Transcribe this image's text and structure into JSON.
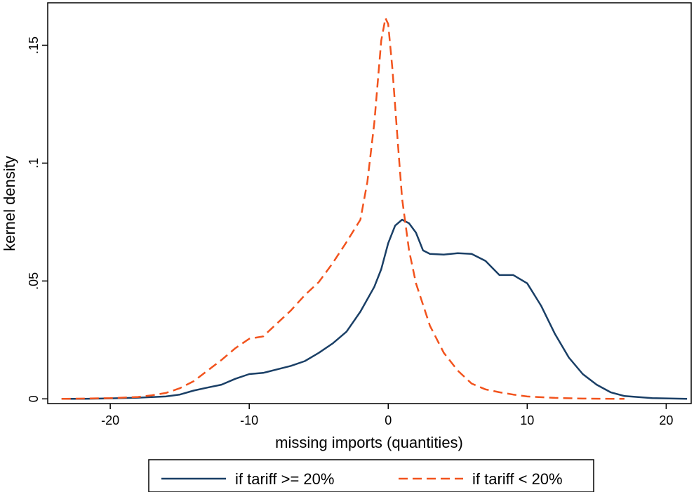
{
  "chart_data": {
    "type": "line",
    "title": "",
    "xlabel": "missing imports (quantities)",
    "ylabel": "kernel density",
    "xlim": [
      -24.5,
      21.8
    ],
    "ylim": [
      -0.002,
      0.168
    ],
    "x_ticks": [
      -20,
      -10,
      0,
      10,
      20
    ],
    "x_tick_labels": [
      "-20",
      "-10",
      "0",
      "10",
      "20"
    ],
    "y_ticks": [
      0,
      0.05,
      0.1,
      0.15
    ],
    "y_tick_labels": [
      "0",
      ".05",
      ".1",
      ".15"
    ],
    "grid": false,
    "legend_position": "bottom",
    "series": [
      {
        "name": "if tariff >= 20%",
        "color": "#1a3f66",
        "style": "solid",
        "points": [
          [
            -23.5,
            0
          ],
          [
            -22,
            0
          ],
          [
            -20,
            0.0002
          ],
          [
            -18,
            0.0005
          ],
          [
            -16,
            0.001
          ],
          [
            -15,
            0.0018
          ],
          [
            -14,
            0.0035
          ],
          [
            -13,
            0.0048
          ],
          [
            -12,
            0.006
          ],
          [
            -11,
            0.0085
          ],
          [
            -10,
            0.0105
          ],
          [
            -9,
            0.011
          ],
          [
            -8,
            0.0125
          ],
          [
            -7,
            0.014
          ],
          [
            -6,
            0.016
          ],
          [
            -5,
            0.0195
          ],
          [
            -4,
            0.0235
          ],
          [
            -3,
            0.0285
          ],
          [
            -2,
            0.037
          ],
          [
            -1,
            0.0475
          ],
          [
            -0.5,
            0.055
          ],
          [
            0,
            0.066
          ],
          [
            0.5,
            0.0735
          ],
          [
            1,
            0.076
          ],
          [
            1.5,
            0.0745
          ],
          [
            2,
            0.0705
          ],
          [
            2.5,
            0.063
          ],
          [
            3,
            0.0615
          ],
          [
            4,
            0.0612
          ],
          [
            5,
            0.0618
          ],
          [
            6,
            0.0615
          ],
          [
            7,
            0.0585
          ],
          [
            8,
            0.0525
          ],
          [
            9,
            0.0525
          ],
          [
            10,
            0.049
          ],
          [
            11,
            0.0395
          ],
          [
            12,
            0.0275
          ],
          [
            13,
            0.0175
          ],
          [
            14,
            0.0105
          ],
          [
            15,
            0.006
          ],
          [
            16,
            0.0028
          ],
          [
            17,
            0.0012
          ],
          [
            19,
            0.0003
          ],
          [
            21.5,
            0
          ]
        ]
      },
      {
        "name": "if tariff < 20%",
        "color": "#f2531d",
        "style": "dashed",
        "points": [
          [
            -23.5,
            0
          ],
          [
            -20,
            0.0003
          ],
          [
            -18,
            0.0008
          ],
          [
            -17,
            0.0015
          ],
          [
            -16,
            0.0025
          ],
          [
            -15,
            0.0045
          ],
          [
            -14,
            0.0075
          ],
          [
            -13,
            0.012
          ],
          [
            -12,
            0.0165
          ],
          [
            -11,
            0.0215
          ],
          [
            -10,
            0.0255
          ],
          [
            -9.5,
            0.026
          ],
          [
            -9,
            0.0265
          ],
          [
            -8,
            0.032
          ],
          [
            -7,
            0.0375
          ],
          [
            -6,
            0.044
          ],
          [
            -5,
            0.0495
          ],
          [
            -4,
            0.0575
          ],
          [
            -3,
            0.0665
          ],
          [
            -2,
            0.076
          ],
          [
            -1.5,
            0.092
          ],
          [
            -1,
            0.117
          ],
          [
            -0.5,
            0.152
          ],
          [
            -0.2,
            0.1615
          ],
          [
            0,
            0.159
          ],
          [
            0.3,
            0.14
          ],
          [
            0.7,
            0.108
          ],
          [
            1,
            0.085
          ],
          [
            1.5,
            0.063
          ],
          [
            2,
            0.049
          ],
          [
            3,
            0.031
          ],
          [
            4,
            0.0195
          ],
          [
            5,
            0.012
          ],
          [
            6,
            0.0065
          ],
          [
            7,
            0.004
          ],
          [
            8,
            0.0028
          ],
          [
            9,
            0.0018
          ],
          [
            10,
            0.001
          ],
          [
            12,
            0.0004
          ],
          [
            14,
            0.0001
          ],
          [
            17,
            0
          ]
        ]
      }
    ]
  }
}
